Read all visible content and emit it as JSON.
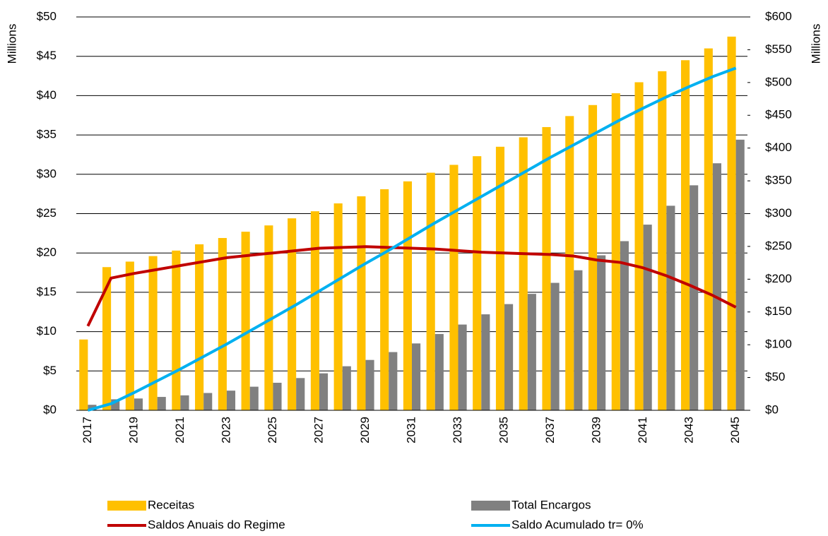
{
  "chart_data": {
    "type": "combo",
    "y_label": "Millions",
    "y2_label": "Millions",
    "categories": [
      "2017",
      null,
      "2019",
      null,
      "2021",
      null,
      "2023",
      null,
      "2025",
      null,
      "2027",
      null,
      "2029",
      null,
      "2031",
      null,
      "2033",
      null,
      "2035",
      null,
      "2037",
      null,
      "2039",
      null,
      "2041",
      null,
      "2043",
      null,
      "2045"
    ],
    "series": [
      {
        "name": "Receitas",
        "type": "bar",
        "color": "#FFC000",
        "values": [
          9.0,
          18.2,
          18.9,
          19.6,
          20.3,
          21.1,
          21.9,
          22.7,
          23.5,
          24.4,
          25.3,
          26.3,
          27.2,
          28.1,
          29.1,
          30.2,
          31.2,
          32.3,
          33.5,
          34.7,
          36.0,
          37.4,
          38.8,
          40.3,
          41.7,
          43.1,
          44.5,
          46.0,
          47.5
        ]
      },
      {
        "name": "Total Encargos",
        "type": "bar",
        "color": "#808080",
        "values": [
          0.7,
          1.4,
          1.5,
          1.7,
          1.9,
          2.2,
          2.5,
          3.0,
          3.5,
          4.1,
          4.7,
          5.6,
          6.4,
          7.4,
          8.5,
          9.7,
          10.9,
          12.2,
          13.5,
          14.8,
          16.2,
          17.8,
          19.7,
          21.5,
          23.6,
          26.0,
          28.6,
          31.4,
          34.4
        ]
      },
      {
        "name": "Saldos Anuais do Regime",
        "type": "line",
        "color": "#C00000",
        "values": [
          10.7,
          16.8,
          17.4,
          17.9,
          18.4,
          18.9,
          19.4,
          19.7,
          20.0,
          20.3,
          20.6,
          20.7,
          20.8,
          20.7,
          20.6,
          20.5,
          20.3,
          20.1,
          20.0,
          19.9,
          19.8,
          19.6,
          19.1,
          18.8,
          18.1,
          17.1,
          15.9,
          14.6,
          13.1
        ]
      },
      {
        "name": "Saldo Acumulado tr= 0%",
        "type": "line",
        "axis": "y2",
        "color": "#00B0F0",
        "values": [
          0,
          10,
          27,
          45,
          63,
          82,
          101,
          121,
          141,
          161,
          182,
          203,
          224,
          244,
          265,
          286,
          306,
          326,
          346,
          366,
          386,
          405,
          424,
          443,
          461,
          478,
          494,
          509,
          522
        ]
      }
    ],
    "ylim": [
      0,
      50
    ],
    "yticks": [
      {
        "value": 0,
        "label": "$0"
      },
      {
        "value": 5,
        "label": "$5"
      },
      {
        "value": 10,
        "label": "$10"
      },
      {
        "value": 15,
        "label": "$15"
      },
      {
        "value": 20,
        "label": "$20"
      },
      {
        "value": 25,
        "label": "$25"
      },
      {
        "value": 30,
        "label": "$30"
      },
      {
        "value": 35,
        "label": "$35"
      },
      {
        "value": 40,
        "label": "$40"
      },
      {
        "value": 45,
        "label": "$45"
      },
      {
        "value": 50,
        "label": "$50"
      }
    ],
    "y2lim": [
      0,
      600
    ],
    "y2ticks": [
      {
        "value": 0,
        "label": "$0"
      },
      {
        "value": 50,
        "label": "$50"
      },
      {
        "value": 100,
        "label": "$100"
      },
      {
        "value": 150,
        "label": "$150"
      },
      {
        "value": 200,
        "label": "$200"
      },
      {
        "value": 250,
        "label": "$250"
      },
      {
        "value": 300,
        "label": "$300"
      },
      {
        "value": 350,
        "label": "$350"
      },
      {
        "value": 400,
        "label": "$400"
      },
      {
        "value": 450,
        "label": "$450"
      },
      {
        "value": 500,
        "label": "$500"
      },
      {
        "value": 550,
        "label": "$550"
      },
      {
        "value": 600,
        "label": "$600"
      }
    ],
    "grid": true,
    "legend": "bottom"
  }
}
